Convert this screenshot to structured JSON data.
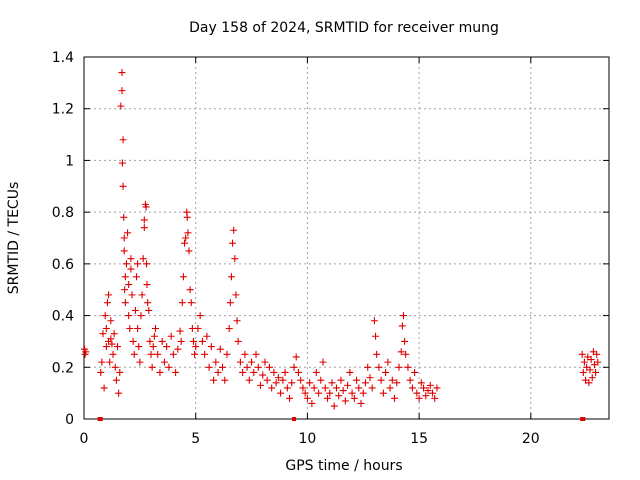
{
  "chart_data": {
    "type": "scatter",
    "title": "Day 158 of 2024, SRMTID for receiver mung",
    "xlabel": "GPS time / hours",
    "ylabel": "SRMTID / TECUs",
    "xlim": [
      0,
      23.5
    ],
    "ylim": [
      0,
      1.4
    ],
    "xticks": [
      0,
      5,
      10,
      15,
      20
    ],
    "xtick_labels": [
      "0",
      "5",
      "10",
      "15",
      "20"
    ],
    "yticks": [
      0,
      0.2,
      0.4,
      0.6,
      0.8,
      1,
      1.2,
      1.4
    ],
    "ytick_labels": [
      "0",
      "0.2",
      "0.4",
      "0.6",
      "0.8",
      "1",
      "1.2",
      "1.4"
    ],
    "grid": true,
    "marker": "+",
    "color": "#e00000",
    "series": [
      {
        "name": "SRMTID",
        "x": [
          0.02,
          0.05,
          0.08,
          0.75,
          0.8,
          0.85,
          0.9,
          0.95,
          1.0,
          1.0,
          1.05,
          1.1,
          1.1,
          1.15,
          1.2,
          1.2,
          1.25,
          1.3,
          1.35,
          1.4,
          1.45,
          1.5,
          1.55,
          1.6,
          1.65,
          1.7,
          1.7,
          1.72,
          1.75,
          1.75,
          1.78,
          1.8,
          1.8,
          1.82,
          1.85,
          1.85,
          1.9,
          1.95,
          2.0,
          2.0,
          2.05,
          2.1,
          2.1,
          2.15,
          2.2,
          2.25,
          2.3,
          2.35,
          2.4,
          2.4,
          2.45,
          2.5,
          2.55,
          2.6,
          2.65,
          2.7,
          2.7,
          2.75,
          2.78,
          2.8,
          2.82,
          2.85,
          2.9,
          2.95,
          3.0,
          3.05,
          3.1,
          3.15,
          3.2,
          3.3,
          3.4,
          3.5,
          3.6,
          3.7,
          3.8,
          3.9,
          4.0,
          4.1,
          4.2,
          4.3,
          4.35,
          4.4,
          4.45,
          4.5,
          4.55,
          4.6,
          4.62,
          4.65,
          4.7,
          4.75,
          4.8,
          4.85,
          4.9,
          4.95,
          5.0,
          5.1,
          5.2,
          5.3,
          5.4,
          5.5,
          5.6,
          5.7,
          5.8,
          5.9,
          6.0,
          6.1,
          6.2,
          6.3,
          6.4,
          6.5,
          6.55,
          6.6,
          6.65,
          6.7,
          6.75,
          6.8,
          6.85,
          6.9,
          7.0,
          7.1,
          7.2,
          7.3,
          7.4,
          7.5,
          7.6,
          7.7,
          7.8,
          7.9,
          8.0,
          8.1,
          8.2,
          8.3,
          8.4,
          8.5,
          8.6,
          8.7,
          8.8,
          8.9,
          9.0,
          9.1,
          9.2,
          9.3,
          9.4,
          9.5,
          9.6,
          9.7,
          9.8,
          9.9,
          10.0,
          10.1,
          10.2,
          10.3,
          10.4,
          10.5,
          10.6,
          10.7,
          10.8,
          10.9,
          11.0,
          11.1,
          11.2,
          11.3,
          11.4,
          11.5,
          11.6,
          11.7,
          11.8,
          11.9,
          12.0,
          12.1,
          12.2,
          12.3,
          12.4,
          12.5,
          12.6,
          12.7,
          12.8,
          12.9,
          13.0,
          13.05,
          13.1,
          13.2,
          13.3,
          13.4,
          13.5,
          13.6,
          13.7,
          13.8,
          13.9,
          14.0,
          14.1,
          14.2,
          14.25,
          14.3,
          14.35,
          14.4,
          14.5,
          14.6,
          14.7,
          14.8,
          14.9,
          15.0,
          15.1,
          15.2,
          15.3,
          15.4,
          15.5,
          15.6,
          15.7,
          15.8,
          22.3,
          22.35,
          22.4,
          22.45,
          22.5,
          22.55,
          22.6,
          22.65,
          22.7,
          22.75,
          22.8,
          22.85,
          22.9,
          22.95,
          23.0
        ],
        "y": [
          0.27,
          0.25,
          0.26,
          0.18,
          0.22,
          0.33,
          0.12,
          0.4,
          0.35,
          0.28,
          0.45,
          0.3,
          0.48,
          0.22,
          0.38,
          0.31,
          0.29,
          0.25,
          0.33,
          0.2,
          0.15,
          0.28,
          0.1,
          0.18,
          1.21,
          1.27,
          1.34,
          0.99,
          1.08,
          0.9,
          0.78,
          0.7,
          0.65,
          0.5,
          0.45,
          0.55,
          0.6,
          0.72,
          0.52,
          0.4,
          0.35,
          0.58,
          0.62,
          0.48,
          0.3,
          0.25,
          0.42,
          0.55,
          0.6,
          0.35,
          0.28,
          0.22,
          0.4,
          0.48,
          0.62,
          0.74,
          0.77,
          0.83,
          0.82,
          0.6,
          0.52,
          0.45,
          0.42,
          0.3,
          0.25,
          0.2,
          0.28,
          0.32,
          0.35,
          0.25,
          0.18,
          0.3,
          0.22,
          0.28,
          0.2,
          0.32,
          0.25,
          0.18,
          0.27,
          0.34,
          0.3,
          0.45,
          0.55,
          0.68,
          0.7,
          0.8,
          0.78,
          0.72,
          0.65,
          0.5,
          0.45,
          0.35,
          0.3,
          0.25,
          0.28,
          0.35,
          0.4,
          0.3,
          0.25,
          0.32,
          0.2,
          0.28,
          0.15,
          0.22,
          0.18,
          0.27,
          0.2,
          0.15,
          0.25,
          0.35,
          0.45,
          0.55,
          0.68,
          0.73,
          0.62,
          0.48,
          0.38,
          0.3,
          0.22,
          0.18,
          0.25,
          0.2,
          0.15,
          0.22,
          0.18,
          0.25,
          0.2,
          0.13,
          0.17,
          0.22,
          0.15,
          0.2,
          0.12,
          0.18,
          0.14,
          0.16,
          0.1,
          0.15,
          0.18,
          0.12,
          0.08,
          0.14,
          0.2,
          0.24,
          0.18,
          0.15,
          0.12,
          0.1,
          0.08,
          0.14,
          0.06,
          0.12,
          0.18,
          0.1,
          0.15,
          0.22,
          0.12,
          0.08,
          0.1,
          0.14,
          0.05,
          0.12,
          0.09,
          0.15,
          0.11,
          0.07,
          0.13,
          0.18,
          0.1,
          0.08,
          0.15,
          0.12,
          0.06,
          0.1,
          0.14,
          0.2,
          0.16,
          0.12,
          0.38,
          0.32,
          0.25,
          0.2,
          0.15,
          0.1,
          0.18,
          0.22,
          0.12,
          0.15,
          0.08,
          0.14,
          0.2,
          0.26,
          0.36,
          0.4,
          0.3,
          0.25,
          0.2,
          0.15,
          0.12,
          0.18,
          0.1,
          0.08,
          0.14,
          0.12,
          0.09,
          0.11,
          0.13,
          0.1,
          0.08,
          0.12,
          0.25,
          0.18,
          0.22,
          0.15,
          0.2,
          0.24,
          0.14,
          0.19,
          0.23,
          0.16,
          0.26,
          0.21,
          0.18,
          0.25,
          0.22
        ]
      }
    ],
    "edge_markers_x": [
      0.7,
      0.75,
      9.4,
      22.3,
      22.35
    ]
  }
}
